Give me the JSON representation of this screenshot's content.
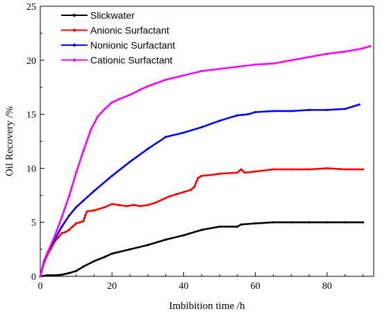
{
  "chart_data": {
    "type": "line",
    "title": "",
    "xlabel": "Imbibition time /h",
    "ylabel": "Oil Recovery /%",
    "xlim": [
      0,
      93
    ],
    "ylim": [
      0,
      25
    ],
    "xticks": [
      0,
      20,
      40,
      60,
      80
    ],
    "yticks": [
      0,
      5,
      10,
      15,
      20,
      25
    ],
    "grid": false,
    "legend": "top-left",
    "series": [
      {
        "name": "Slickwater",
        "color": "#000000",
        "x": [
          0,
          2,
          4,
          6,
          8,
          10,
          12,
          15,
          18,
          20,
          25,
          30,
          35,
          40,
          45,
          50,
          55,
          56,
          60,
          65,
          70,
          75,
          80,
          85,
          90
        ],
        "y": [
          0,
          0.1,
          0.1,
          0.15,
          0.3,
          0.5,
          0.9,
          1.4,
          1.8,
          2.1,
          2.5,
          2.9,
          3.4,
          3.8,
          4.3,
          4.6,
          4.6,
          4.8,
          4.9,
          5.0,
          5.0,
          5.0,
          5.0,
          5.0,
          5.0
        ]
      },
      {
        "name": "Anionic Surfactant",
        "color": "#ff0000",
        "x": [
          0,
          1,
          2,
          3,
          4,
          5,
          6,
          7,
          8,
          9,
          10,
          11,
          12,
          12.5,
          13,
          15,
          18,
          20,
          22,
          24,
          26,
          28,
          30,
          32,
          34,
          36,
          38,
          40,
          42,
          43,
          44,
          45,
          48,
          50,
          55,
          56,
          57,
          60,
          65,
          70,
          75,
          80,
          85,
          90
        ],
        "y": [
          0,
          1.2,
          2.0,
          2.6,
          3.2,
          3.6,
          4.0,
          4.1,
          4.3,
          4.6,
          4.9,
          5.0,
          5.1,
          5.6,
          6.0,
          6.1,
          6.4,
          6.7,
          6.6,
          6.5,
          6.6,
          6.5,
          6.6,
          6.8,
          7.1,
          7.4,
          7.6,
          7.8,
          8.0,
          8.3,
          9.1,
          9.3,
          9.4,
          9.5,
          9.6,
          9.9,
          9.6,
          9.7,
          9.9,
          9.9,
          9.9,
          10.0,
          9.9,
          9.9
        ]
      },
      {
        "name": "Nonionic Surfactant",
        "color": "#0000ff",
        "x": [
          0,
          1,
          2,
          4,
          6,
          8,
          10,
          12,
          15,
          20,
          25,
          30,
          35,
          40,
          45,
          50,
          55,
          58,
          60,
          65,
          70,
          75,
          80,
          85,
          89
        ],
        "y": [
          0,
          1.4,
          2.2,
          3.4,
          4.6,
          5.6,
          6.4,
          7.0,
          7.9,
          9.3,
          10.6,
          11.8,
          12.9,
          13.3,
          13.8,
          14.4,
          14.9,
          15.0,
          15.2,
          15.3,
          15.3,
          15.4,
          15.4,
          15.5,
          15.9
        ]
      },
      {
        "name": "Cationic Surfactant",
        "color": "#ff00ff",
        "x": [
          0,
          1,
          2,
          4,
          6,
          8,
          10,
          12,
          14,
          16,
          18,
          20,
          22,
          25,
          28,
          30,
          35,
          40,
          45,
          50,
          55,
          60,
          65,
          70,
          75,
          80,
          85,
          90,
          92
        ],
        "y": [
          0,
          1.3,
          2.2,
          3.7,
          5.5,
          7.4,
          9.6,
          11.6,
          13.5,
          14.8,
          15.5,
          16.1,
          16.4,
          16.8,
          17.3,
          17.6,
          18.2,
          18.6,
          19.0,
          19.2,
          19.4,
          19.6,
          19.7,
          20.0,
          20.3,
          20.6,
          20.8,
          21.1,
          21.3
        ]
      }
    ]
  }
}
